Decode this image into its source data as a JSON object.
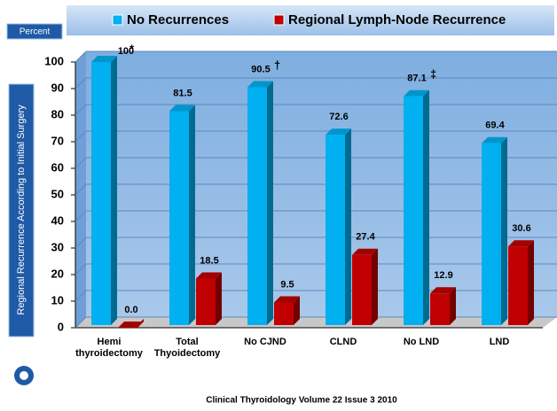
{
  "chart_data": {
    "type": "bar",
    "legend_texts": [],
    "badge": "Percent",
    "y_axis_label": "Regional Recurrence According to Initial Surgery",
    "footer": "Clinical Thyroidology Volume 22 Issue 3 2010",
    "categories": [
      "Hemi thyroidectomy",
      "Total Thyoidectomy",
      "No CJND",
      "CLND",
      "No  LND",
      "LND"
    ],
    "series": [
      {
        "name": "No Recurrences",
        "color": "#00b0f0",
        "values": [
          100,
          81.5,
          90.5,
          72.6,
          87.1,
          69.4
        ],
        "value_labels": [
          "100",
          "81.5",
          "90.5",
          "72.6",
          "87.1",
          "69.4"
        ]
      },
      {
        "name": "Regional Lymph-Node Recurrence",
        "color": "#c00000",
        "values": [
          0,
          18.5,
          9.5,
          27.4,
          12.9,
          30.6
        ],
        "value_labels": [
          "0.0",
          "18.5",
          "9.5",
          "27.4",
          "12.9",
          "30.6"
        ]
      }
    ],
    "annotations": [
      {
        "text": "*",
        "category": "Hemi thyroidectomy"
      },
      {
        "text": "†",
        "category": "No CJND"
      },
      {
        "text": "‡",
        "category": "No  LND"
      }
    ],
    "ylim": [
      0,
      100
    ],
    "yticks": [
      0,
      10,
      20,
      30,
      40,
      50,
      60,
      70,
      80,
      90,
      100
    ],
    "grid": true
  }
}
